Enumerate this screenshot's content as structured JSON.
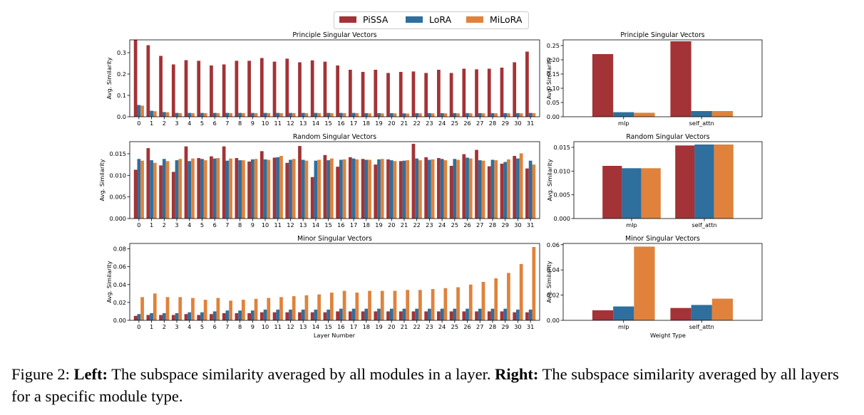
{
  "legend": [
    {
      "name": "PiSSA",
      "color": "#a33336"
    },
    {
      "name": "LoRA",
      "color": "#2e6f9e"
    },
    {
      "name": "MiLoRA",
      "color": "#e0823c"
    }
  ],
  "caption": {
    "figure_label": "Figure 2:",
    "left_label": "Left:",
    "left_text": "The subspace similarity averaged by all modules in a layer.",
    "right_label": "Right:",
    "right_text": "The subspace similarity averaged by all layers for a specific module type."
  },
  "chart_data": [
    {
      "type": "bar",
      "title": "Principle Singular Vectors",
      "xlabel": "",
      "ylabel": "Avg. Similarity",
      "ylim": [
        0,
        0.36
      ],
      "yticks": [
        0.0,
        0.1,
        0.2,
        0.3
      ],
      "ytick_labels": [
        "0.0",
        "0.1",
        "0.2",
        "0.3"
      ],
      "categories": [
        "0",
        "1",
        "2",
        "3",
        "4",
        "5",
        "6",
        "7",
        "8",
        "9",
        "10",
        "11",
        "12",
        "13",
        "14",
        "15",
        "16",
        "17",
        "18",
        "19",
        "20",
        "21",
        "22",
        "23",
        "24",
        "25",
        "26",
        "27",
        "28",
        "29",
        "30",
        "31"
      ],
      "series": [
        {
          "name": "PiSSA",
          "values": [
            0.36,
            0.335,
            0.285,
            0.245,
            0.265,
            0.262,
            0.24,
            0.245,
            0.262,
            0.262,
            0.275,
            0.258,
            0.272,
            0.255,
            0.264,
            0.258,
            0.24,
            0.22,
            0.21,
            0.22,
            0.205,
            0.21,
            0.212,
            0.205,
            0.22,
            0.205,
            0.225,
            0.222,
            0.225,
            0.23,
            0.255,
            0.305
          ]
        },
        {
          "name": "LoRA",
          "values": [
            0.055,
            0.028,
            0.022,
            0.018,
            0.018,
            0.018,
            0.018,
            0.018,
            0.018,
            0.018,
            0.018,
            0.018,
            0.018,
            0.018,
            0.018,
            0.018,
            0.018,
            0.018,
            0.017,
            0.017,
            0.017,
            0.016,
            0.017,
            0.017,
            0.017,
            0.017,
            0.017,
            0.017,
            0.017,
            0.017,
            0.017,
            0.018
          ]
        },
        {
          "name": "MiLoRA",
          "values": [
            0.052,
            0.026,
            0.021,
            0.017,
            0.017,
            0.017,
            0.017,
            0.017,
            0.017,
            0.017,
            0.017,
            0.017,
            0.017,
            0.017,
            0.017,
            0.017,
            0.017,
            0.017,
            0.016,
            0.016,
            0.016,
            0.015,
            0.016,
            0.016,
            0.016,
            0.016,
            0.016,
            0.016,
            0.016,
            0.016,
            0.016,
            0.017
          ]
        }
      ]
    },
    {
      "type": "bar",
      "title": "Principle Singular Vectors",
      "xlabel": "",
      "ylabel": "Avg. Similarity",
      "ylim": [
        0,
        0.27
      ],
      "yticks": [
        0.0,
        0.05,
        0.1,
        0.15,
        0.2,
        0.25
      ],
      "ytick_labels": [
        "0.00",
        "0.05",
        "0.10",
        "0.15",
        "0.20",
        "0.25"
      ],
      "categories": [
        "mlp",
        "self_attn"
      ],
      "series": [
        {
          "name": "PiSSA",
          "values": [
            0.22,
            0.265
          ]
        },
        {
          "name": "LoRA",
          "values": [
            0.016,
            0.02
          ]
        },
        {
          "name": "MiLoRA",
          "values": [
            0.014,
            0.02
          ]
        }
      ]
    },
    {
      "type": "bar",
      "title": "Random Singular Vectors",
      "xlabel": "",
      "ylabel": "Avg. Similarity",
      "ylim": [
        0,
        0.0178
      ],
      "yticks": [
        0.0,
        0.005,
        0.01,
        0.015
      ],
      "ytick_labels": [
        "0.000",
        "0.005",
        "0.010",
        "0.015"
      ],
      "categories": [
        "0",
        "1",
        "2",
        "3",
        "4",
        "5",
        "6",
        "7",
        "8",
        "9",
        "10",
        "11",
        "12",
        "13",
        "14",
        "15",
        "16",
        "17",
        "18",
        "19",
        "20",
        "21",
        "22",
        "23",
        "24",
        "25",
        "26",
        "27",
        "28",
        "29",
        "30",
        "31"
      ],
      "series": [
        {
          "name": "PiSSA",
          "values": [
            0.0113,
            0.0163,
            0.0123,
            0.0108,
            0.0167,
            0.014,
            0.0144,
            0.0167,
            0.014,
            0.0132,
            0.0156,
            0.0141,
            0.0129,
            0.0168,
            0.0096,
            0.0147,
            0.012,
            0.0142,
            0.0138,
            0.0125,
            0.0137,
            0.0133,
            0.0173,
            0.0142,
            0.014,
            0.0122,
            0.0149,
            0.0159,
            0.0121,
            0.0127,
            0.0145,
            0.0116
          ]
        },
        {
          "name": "LoRA",
          "values": [
            0.0138,
            0.0135,
            0.0138,
            0.0135,
            0.0133,
            0.0138,
            0.0139,
            0.0134,
            0.0135,
            0.0137,
            0.0137,
            0.0142,
            0.0136,
            0.0136,
            0.0134,
            0.0135,
            0.0136,
            0.0139,
            0.0136,
            0.0137,
            0.0135,
            0.0134,
            0.0139,
            0.0136,
            0.0138,
            0.0138,
            0.0141,
            0.0135,
            0.0136,
            0.0131,
            0.0139,
            0.0134
          ]
        },
        {
          "name": "MiLoRA",
          "values": [
            0.0134,
            0.0129,
            0.0133,
            0.0138,
            0.0139,
            0.0135,
            0.014,
            0.0139,
            0.0135,
            0.0138,
            0.0136,
            0.0145,
            0.0138,
            0.0134,
            0.0136,
            0.0139,
            0.0137,
            0.0137,
            0.0136,
            0.0138,
            0.0133,
            0.0135,
            0.0135,
            0.0137,
            0.0135,
            0.0136,
            0.0139,
            0.0134,
            0.0135,
            0.0137,
            0.0151,
            0.0125
          ]
        }
      ]
    },
    {
      "type": "bar",
      "title": "Random Singular Vectors",
      "xlabel": "",
      "ylabel": "Avg. Similarity",
      "ylim": [
        0,
        0.0162
      ],
      "yticks": [
        0.0,
        0.005,
        0.01,
        0.015
      ],
      "ytick_labels": [
        "0.000",
        "0.005",
        "0.010",
        "0.015"
      ],
      "categories": [
        "mlp",
        "self_attn"
      ],
      "series": [
        {
          "name": "PiSSA",
          "values": [
            0.0111,
            0.0154
          ]
        },
        {
          "name": "LoRA",
          "values": [
            0.0106,
            0.0156
          ]
        },
        {
          "name": "MiLoRA",
          "values": [
            0.0106,
            0.0156
          ]
        }
      ]
    },
    {
      "type": "bar",
      "title": "Minor Singular Vectors",
      "xlabel": "Layer Number",
      "ylabel": "Avg. Similarity",
      "ylim": [
        0,
        0.086
      ],
      "yticks": [
        0.0,
        0.02,
        0.04,
        0.06,
        0.08
      ],
      "ytick_labels": [
        "0.00",
        "0.02",
        "0.04",
        "0.06",
        "0.08"
      ],
      "categories": [
        "0",
        "1",
        "2",
        "3",
        "4",
        "5",
        "6",
        "7",
        "8",
        "9",
        "10",
        "11",
        "12",
        "13",
        "14",
        "15",
        "16",
        "17",
        "18",
        "19",
        "20",
        "21",
        "22",
        "23",
        "24",
        "25",
        "26",
        "27",
        "28",
        "29",
        "30",
        "31"
      ],
      "series": [
        {
          "name": "PiSSA",
          "values": [
            0.005,
            0.006,
            0.006,
            0.006,
            0.007,
            0.006,
            0.007,
            0.008,
            0.008,
            0.008,
            0.009,
            0.009,
            0.009,
            0.009,
            0.009,
            0.009,
            0.01,
            0.01,
            0.01,
            0.01,
            0.01,
            0.01,
            0.01,
            0.01,
            0.01,
            0.01,
            0.01,
            0.01,
            0.01,
            0.01,
            0.009,
            0.009
          ]
        },
        {
          "name": "LoRA",
          "values": [
            0.007,
            0.008,
            0.008,
            0.008,
            0.009,
            0.009,
            0.01,
            0.011,
            0.011,
            0.011,
            0.012,
            0.012,
            0.012,
            0.012,
            0.012,
            0.012,
            0.013,
            0.013,
            0.013,
            0.013,
            0.013,
            0.013,
            0.013,
            0.013,
            0.013,
            0.013,
            0.013,
            0.013,
            0.013,
            0.013,
            0.012,
            0.012
          ]
        },
        {
          "name": "MiLoRA",
          "values": [
            0.026,
            0.03,
            0.026,
            0.026,
            0.025,
            0.023,
            0.025,
            0.022,
            0.023,
            0.024,
            0.025,
            0.026,
            0.027,
            0.028,
            0.029,
            0.031,
            0.033,
            0.031,
            0.033,
            0.033,
            0.033,
            0.034,
            0.034,
            0.035,
            0.036,
            0.037,
            0.04,
            0.043,
            0.047,
            0.053,
            0.063,
            0.082
          ]
        }
      ]
    },
    {
      "type": "bar",
      "title": "Minor Singular Vectors",
      "xlabel": "Weight Type",
      "ylabel": "Avg. Similarity",
      "ylim": [
        0,
        0.061
      ],
      "yticks": [
        0.0,
        0.02,
        0.04,
        0.06
      ],
      "ytick_labels": [
        "0.00",
        "0.02",
        "0.04",
        "0.06"
      ],
      "categories": [
        "mlp",
        "self_attn"
      ],
      "series": [
        {
          "name": "PiSSA",
          "values": [
            0.008,
            0.0098
          ]
        },
        {
          "name": "LoRA",
          "values": [
            0.011,
            0.0122
          ]
        },
        {
          "name": "MiLoRA",
          "values": [
            0.0585,
            0.0172
          ]
        }
      ]
    }
  ]
}
